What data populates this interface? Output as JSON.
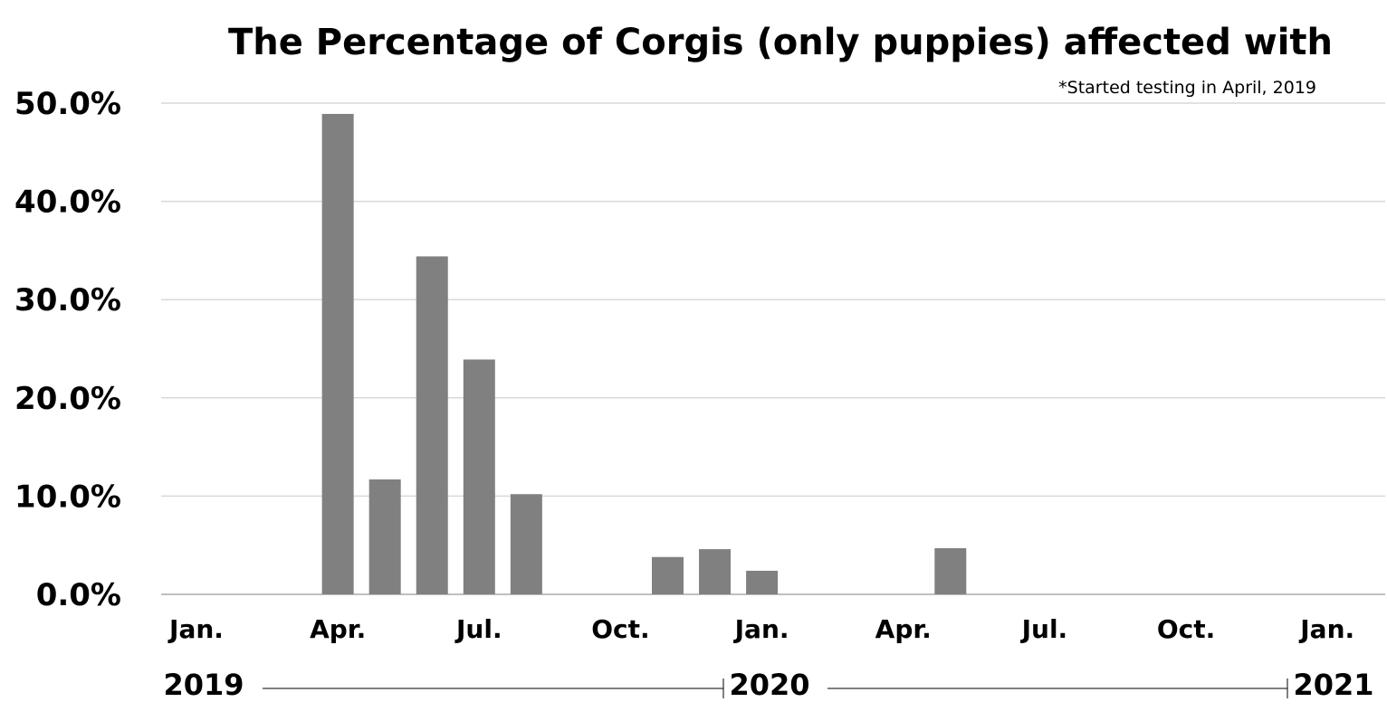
{
  "chart_data": {
    "type": "bar",
    "title": "The Percentage of Corgis (only puppies) affected with",
    "annotation": "*Started testing in April, 2019",
    "xlabel": "",
    "ylabel": "",
    "ylim": [
      0,
      50
    ],
    "y_ticks": [
      "0.0%",
      "10.0%",
      "20.0%",
      "30.0%",
      "40.0%",
      "50.0%"
    ],
    "y_tick_values": [
      0,
      10,
      20,
      30,
      40,
      50
    ],
    "grid": true,
    "legend": "none",
    "bar_color": "#808080",
    "gridline_color": "#d9d9d9",
    "x_tick_labels": [
      {
        "label": "Jan.",
        "month": "2019-01"
      },
      {
        "label": "Apr.",
        "month": "2019-04"
      },
      {
        "label": "Jul.",
        "month": "2019-07"
      },
      {
        "label": "Oct.",
        "month": "2019-10"
      },
      {
        "label": "Jan.",
        "month": "2020-01"
      },
      {
        "label": "Apr.",
        "month": "2020-04"
      },
      {
        "label": "Jul.",
        "month": "2020-07"
      },
      {
        "label": "Oct.",
        "month": "2020-10"
      },
      {
        "label": "Jan.",
        "month": "2021-01"
      }
    ],
    "years": [
      {
        "label": "2019",
        "month": "2019-01"
      },
      {
        "label": "2020",
        "month": "2020-01"
      },
      {
        "label": "2021",
        "month": "2021-01"
      }
    ],
    "x_range": [
      "2019-01",
      "2021-01"
    ],
    "categories": [
      "2019-04",
      "2019-05",
      "2019-06",
      "2019-07",
      "2019-08",
      "2019-09",
      "2019-10",
      "2019-11",
      "2019-12",
      "2020-01",
      "2020-02",
      "2020-03",
      "2020-04",
      "2020-05"
    ],
    "values": [
      48.9,
      11.7,
      34.4,
      23.9,
      10.2,
      0.0,
      0.0,
      3.8,
      4.6,
      2.4,
      0.0,
      0.0,
      0.0,
      4.7
    ]
  }
}
